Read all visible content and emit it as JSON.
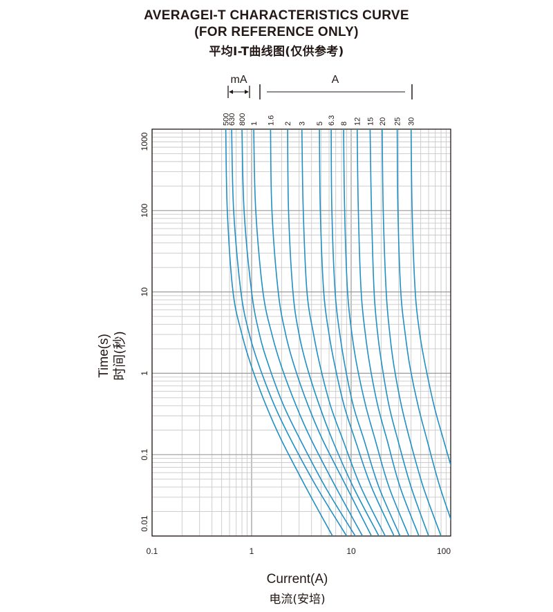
{
  "header": {
    "title_line1": "AVERAGEI-T CHARACTERISTICS CURVE",
    "title_line2": "(FOR REFERENCE ONLY)",
    "title_line3": "平均I-T曲线图(仅供参考)"
  },
  "chart_data": {
    "type": "line",
    "title": "AVERAGEI-T CHARACTERISTICS CURVE",
    "xlabel": "Current(A)",
    "xlabel_cn": "电流(安培)",
    "ylabel": "Time(s)",
    "ylabel_cn": "时间(秒)",
    "x_scale": "log",
    "y_scale": "log",
    "xlim": [
      0.1,
      100
    ],
    "ylim": [
      0.01,
      1000
    ],
    "x_ticks": [
      "0.1",
      "1",
      "10",
      "100"
    ],
    "y_ticks": [
      "0.01",
      "0.1",
      "1",
      "10",
      "100",
      "1000"
    ],
    "grid": true,
    "line_color": "#1f8fc4",
    "unit_groups": [
      {
        "label": "mA",
        "ratings": [
          "500",
          "630",
          "800"
        ]
      },
      {
        "label": "A",
        "ratings": [
          "1",
          "1.6",
          "2",
          "3",
          "5",
          "6.3",
          "8",
          "12",
          "15",
          "20",
          "25",
          "30"
        ]
      }
    ],
    "series": [
      {
        "name": "500",
        "points": [
          [
            0.55,
            1000
          ],
          [
            0.57,
            100
          ],
          [
            0.65,
            10
          ],
          [
            0.8,
            3
          ],
          [
            1,
            1.2
          ],
          [
            1.4,
            0.4
          ],
          [
            2,
            0.15
          ],
          [
            3.5,
            0.04
          ],
          [
            6.5,
            0.01
          ]
        ]
      },
      {
        "name": "630",
        "points": [
          [
            0.63,
            1000
          ],
          [
            0.66,
            100
          ],
          [
            0.78,
            10
          ],
          [
            0.95,
            3
          ],
          [
            1.2,
            1.2
          ],
          [
            1.7,
            0.4
          ],
          [
            2.5,
            0.15
          ],
          [
            4.5,
            0.04
          ],
          [
            9,
            0.01
          ]
        ]
      },
      {
        "name": "800",
        "points": [
          [
            0.8,
            1000
          ],
          [
            0.84,
            100
          ],
          [
            1,
            10
          ],
          [
            1.2,
            3
          ],
          [
            1.5,
            1.2
          ],
          [
            2.1,
            0.4
          ],
          [
            3.1,
            0.15
          ],
          [
            5.5,
            0.04
          ],
          [
            11,
            0.01
          ]
        ]
      },
      {
        "name": "1",
        "points": [
          [
            1.05,
            1000
          ],
          [
            1.1,
            100
          ],
          [
            1.3,
            10
          ],
          [
            1.6,
            3
          ],
          [
            2,
            1.2
          ],
          [
            2.8,
            0.4
          ],
          [
            4,
            0.15
          ],
          [
            7,
            0.04
          ],
          [
            13,
            0.01
          ]
        ]
      },
      {
        "name": "1.6",
        "points": [
          [
            1.55,
            1000
          ],
          [
            1.6,
            100
          ],
          [
            1.85,
            10
          ],
          [
            2.2,
            3
          ],
          [
            2.7,
            1.2
          ],
          [
            3.7,
            0.4
          ],
          [
            5.2,
            0.15
          ],
          [
            9,
            0.04
          ],
          [
            16,
            0.01
          ]
        ]
      },
      {
        "name": "2",
        "points": [
          [
            2.3,
            1000
          ],
          [
            2.35,
            100
          ],
          [
            2.6,
            10
          ],
          [
            3,
            3
          ],
          [
            3.6,
            1.2
          ],
          [
            4.8,
            0.4
          ],
          [
            6.5,
            0.15
          ],
          [
            10.5,
            0.04
          ],
          [
            19,
            0.01
          ]
        ]
      },
      {
        "name": "3",
        "points": [
          [
            3.2,
            1000
          ],
          [
            3.3,
            100
          ],
          [
            3.6,
            10
          ],
          [
            4.2,
            3
          ],
          [
            4.9,
            1.2
          ],
          [
            6.2,
            0.4
          ],
          [
            8.3,
            0.15
          ],
          [
            12.5,
            0.04
          ],
          [
            22,
            0.01
          ]
        ]
      },
      {
        "name": "5",
        "points": [
          [
            4.8,
            1000
          ],
          [
            4.9,
            100
          ],
          [
            5.3,
            10
          ],
          [
            6,
            3
          ],
          [
            6.9,
            1.2
          ],
          [
            8.5,
            0.4
          ],
          [
            11,
            0.15
          ],
          [
            16,
            0.04
          ],
          [
            27,
            0.01
          ]
        ]
      },
      {
        "name": "6.3",
        "points": [
          [
            6.3,
            1000
          ],
          [
            6.4,
            100
          ],
          [
            6.9,
            10
          ],
          [
            7.7,
            3
          ],
          [
            8.7,
            1.2
          ],
          [
            10.5,
            0.4
          ],
          [
            13.5,
            0.15
          ],
          [
            19,
            0.04
          ],
          [
            31,
            0.01
          ]
        ]
      },
      {
        "name": "8",
        "points": [
          [
            8.4,
            1000
          ],
          [
            8.6,
            100
          ],
          [
            9.2,
            10
          ],
          [
            10.2,
            3
          ],
          [
            11.5,
            1.2
          ],
          [
            14,
            0.4
          ],
          [
            17.5,
            0.15
          ],
          [
            24,
            0.04
          ],
          [
            38,
            0.01
          ]
        ]
      },
      {
        "name": "12",
        "points": [
          [
            11.5,
            1000
          ],
          [
            11.8,
            100
          ],
          [
            12.6,
            10
          ],
          [
            13.9,
            3
          ],
          [
            15.5,
            1.2
          ],
          [
            18.5,
            0.4
          ],
          [
            23,
            0.15
          ],
          [
            31,
            0.04
          ],
          [
            48,
            0.01
          ]
        ]
      },
      {
        "name": "15",
        "points": [
          [
            15.5,
            1000
          ],
          [
            16,
            100
          ],
          [
            17,
            10
          ],
          [
            18.5,
            3
          ],
          [
            20.5,
            1.2
          ],
          [
            24,
            0.4
          ],
          [
            29.5,
            0.15
          ],
          [
            40,
            0.04
          ],
          [
            60,
            0.01
          ]
        ]
      },
      {
        "name": "20",
        "points": [
          [
            20.5,
            1000
          ],
          [
            21,
            100
          ],
          [
            22.5,
            10
          ],
          [
            24.5,
            3
          ],
          [
            27,
            1.2
          ],
          [
            32,
            0.4
          ],
          [
            39,
            0.15
          ],
          [
            53,
            0.04
          ],
          [
            80,
            0.01
          ]
        ]
      },
      {
        "name": "25",
        "points": [
          [
            29,
            1000
          ],
          [
            29.5,
            100
          ],
          [
            31.5,
            10
          ],
          [
            35,
            3
          ],
          [
            39,
            1.2
          ],
          [
            47,
            0.4
          ],
          [
            58,
            0.15
          ],
          [
            78,
            0.04
          ],
          [
            115,
            0.01
          ]
        ]
      },
      {
        "name": "30",
        "points": [
          [
            40,
            1000
          ],
          [
            41,
            100
          ],
          [
            44,
            10
          ],
          [
            49,
            3
          ],
          [
            56,
            1.2
          ],
          [
            68,
            0.4
          ],
          [
            85,
            0.15
          ],
          [
            110,
            0.05
          ]
        ]
      }
    ]
  }
}
